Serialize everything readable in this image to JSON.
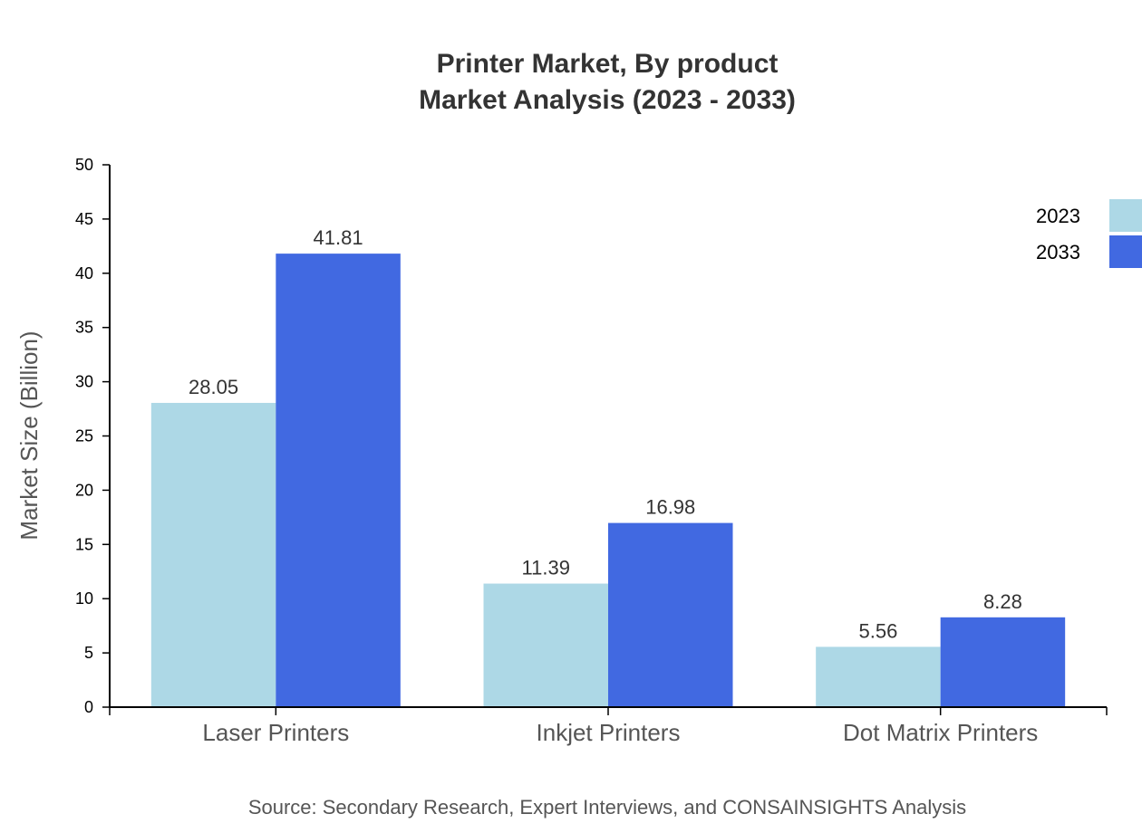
{
  "chart_data": {
    "type": "bar",
    "title": "Printer Market, By product",
    "subtitle": "Market Analysis (2023 - 2033)",
    "xlabel": "",
    "ylabel": "Market Size (Billion)",
    "ylim": [
      0,
      50
    ],
    "yticks": [
      0,
      5,
      10,
      15,
      20,
      25,
      30,
      35,
      40,
      45,
      50
    ],
    "categories": [
      "Laser Printers",
      "Inkjet Printers",
      "Dot Matrix Printers"
    ],
    "series": [
      {
        "name": "2023",
        "color": "#ADD8E6",
        "values": [
          28.05,
          11.39,
          5.56
        ]
      },
      {
        "name": "2033",
        "color": "#4169E1",
        "values": [
          41.81,
          16.98,
          8.28
        ]
      }
    ],
    "legend_position": "top-right",
    "grid": false,
    "source": "Source: Secondary Research, Expert Interviews, and CONSAINSIGHTS Analysis"
  }
}
